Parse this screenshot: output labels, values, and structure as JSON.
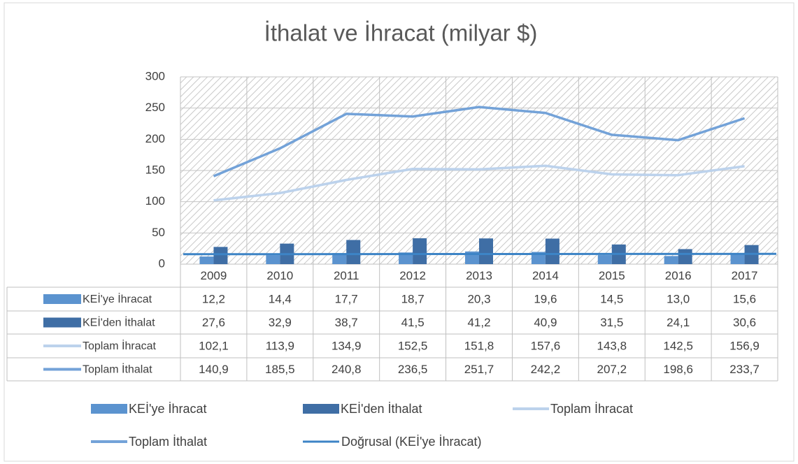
{
  "chart_data": {
    "type": "bar-line-table",
    "title": "İthalat ve İhracat (milyar $)",
    "categories": [
      "2009",
      "2010",
      "2011",
      "2012",
      "2013",
      "2014",
      "2015",
      "2016",
      "2017"
    ],
    "ylim": [
      0,
      300
    ],
    "yticks": [
      0,
      50,
      100,
      150,
      200,
      250,
      300
    ],
    "grid": true,
    "series": [
      {
        "name": "KEİ'ye İhracat",
        "kind": "bar",
        "color": "#5b93cf",
        "values": [
          12.2,
          14.4,
          17.7,
          18.7,
          20.3,
          19.6,
          14.5,
          13.0,
          15.6
        ],
        "value_labels": [
          "12,2",
          "14,4",
          "17,7",
          "18,7",
          "20,3",
          "19,6",
          "14,5",
          "13,0",
          "15,6"
        ]
      },
      {
        "name": "KEİ'den İthalat",
        "kind": "bar",
        "color": "#3f6ea5",
        "values": [
          27.6,
          32.9,
          38.7,
          41.5,
          41.2,
          40.9,
          31.5,
          24.1,
          30.6
        ],
        "value_labels": [
          "27,6",
          "32,9",
          "38,7",
          "41,5",
          "41,2",
          "40,9",
          "31,5",
          "24,1",
          "30,6"
        ]
      },
      {
        "name": "Toplam İhracat",
        "kind": "line",
        "color": "#bcd2ec",
        "values": [
          102.1,
          113.9,
          134.9,
          152.5,
          151.8,
          157.6,
          143.8,
          142.5,
          156.9
        ],
        "value_labels": [
          "102,1",
          "113,9",
          "134,9",
          "152,5",
          "151,8",
          "157,6",
          "143,8",
          "142,5",
          "156,9"
        ]
      },
      {
        "name": "Toplam İthalat",
        "kind": "line",
        "color": "#73a2d8",
        "values": [
          140.9,
          185.5,
          240.8,
          236.5,
          251.7,
          242.2,
          207.2,
          198.6,
          233.7
        ],
        "value_labels": [
          "140,9",
          "185,5",
          "240,8",
          "236,5",
          "251,7",
          "242,2",
          "207,2",
          "198,6",
          "233,7"
        ]
      }
    ],
    "trendline": {
      "name": "Doğrusal (KEİ'ye İhracat)",
      "color": "#3d84c6",
      "values": [
        15.9,
        16.5
      ]
    }
  }
}
